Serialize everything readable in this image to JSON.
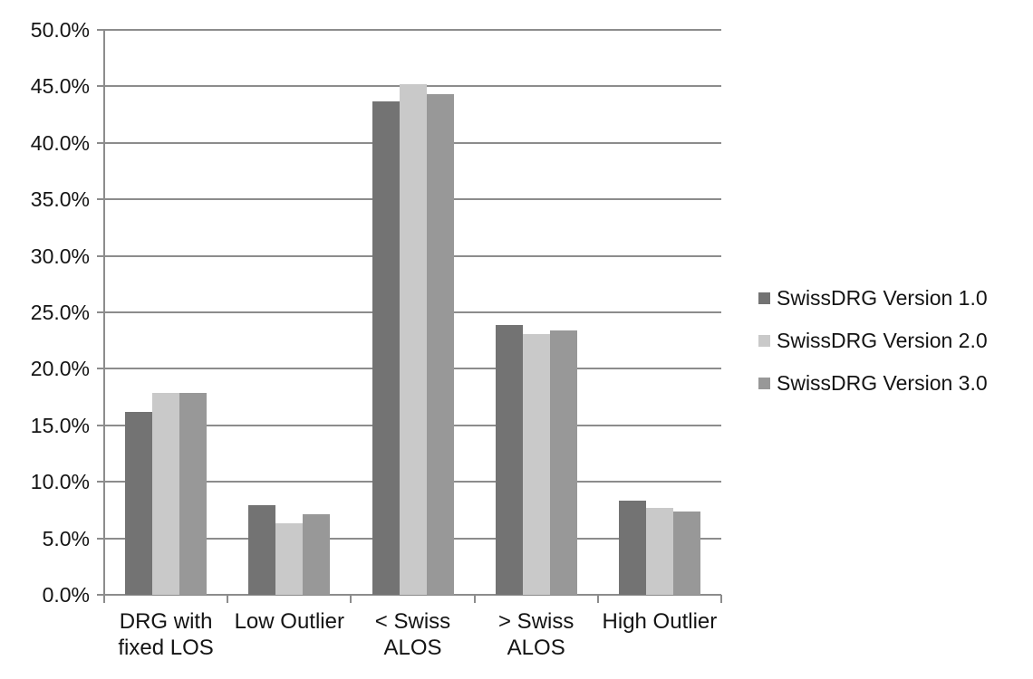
{
  "chart_data": {
    "type": "bar",
    "title": "",
    "xlabel": "",
    "ylabel": "",
    "categories": [
      "DRG with fixed LOS",
      "Low Outlier",
      "< Swiss ALOS",
      "> Swiss ALOS",
      "High Outlier"
    ],
    "category_label_lines": [
      [
        "DRG with",
        "fixed LOS"
      ],
      [
        "Low Outlier"
      ],
      [
        "< Swiss",
        "ALOS"
      ],
      [
        "> Swiss",
        "ALOS"
      ],
      [
        "High Outlier"
      ]
    ],
    "series": [
      {
        "name": "SwissDRG Version 1.0",
        "color": "#737373",
        "values": [
          16.2,
          7.9,
          43.7,
          23.9,
          8.3
        ]
      },
      {
        "name": "SwissDRG Version 2.0",
        "color": "#c9c9c9",
        "values": [
          17.9,
          6.3,
          45.2,
          23.1,
          7.7
        ]
      },
      {
        "name": "SwissDRG Version 3.0",
        "color": "#989898",
        "values": [
          17.9,
          7.1,
          44.3,
          23.4,
          7.4
        ]
      }
    ],
    "ylim": [
      0,
      50
    ],
    "ytick_step": 5,
    "ytick_labels": [
      "0.0%",
      "5.0%",
      "10.0%",
      "15.0%",
      "20.0%",
      "25.0%",
      "30.0%",
      "35.0%",
      "40.0%",
      "45.0%",
      "50.0%"
    ],
    "grid": true,
    "legend_position": "right"
  },
  "colors": {
    "background": "#ffffff",
    "gridline": "#8c8c8c",
    "axis": "#8c8c8c",
    "text": "#141414"
  }
}
